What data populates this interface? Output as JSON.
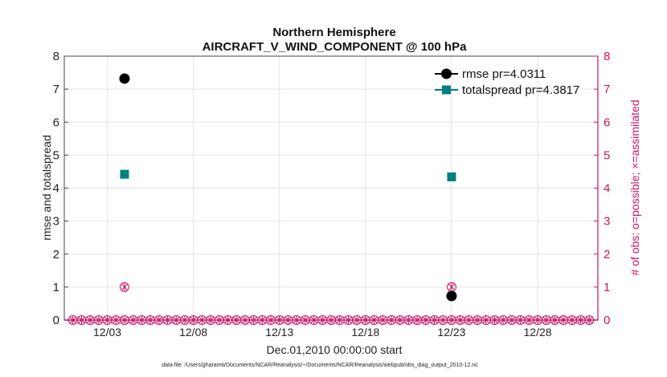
{
  "chart_data": {
    "type": "scatter",
    "title": "Northern Hemisphere",
    "subtitle": "AIRCRAFT_V_WIND_COMPONENT @ 100 hPa",
    "xlabel": "Dec.01,2010 00:00:00 start",
    "ylabel": "rmse and totalspread",
    "ylabel_right": "# of obs: o=possible; ×=assimilated",
    "ylim": [
      0,
      8
    ],
    "ylim_right": [
      0,
      8
    ],
    "xlim_days": [
      0.5,
      31.5
    ],
    "x_ticks": [
      {
        "day": 3,
        "label": "12/03"
      },
      {
        "day": 8,
        "label": "12/08"
      },
      {
        "day": 13,
        "label": "12/13"
      },
      {
        "day": 18,
        "label": "12/18"
      },
      {
        "day": 23,
        "label": "12/23"
      },
      {
        "day": 28,
        "label": "12/28"
      }
    ],
    "y_ticks": [
      0,
      1,
      2,
      3,
      4,
      5,
      6,
      7,
      8
    ],
    "y_ticks_right": [
      0,
      1,
      2,
      3,
      4,
      5,
      6,
      7,
      8
    ],
    "grid": true,
    "legend_position": "top-right",
    "series": [
      {
        "name": "rmse pr=4.0311",
        "color": "#000000",
        "marker": "circle",
        "points": [
          {
            "day": 4,
            "y": 7.32
          },
          {
            "day": 23,
            "y": 0.73
          }
        ]
      },
      {
        "name": "totalspread pr=4.3817",
        "color": "#008080",
        "marker": "square",
        "points": [
          {
            "day": 4,
            "y": 4.42
          },
          {
            "day": 23,
            "y": 4.34
          }
        ]
      }
    ],
    "obs_counts": {
      "color": "#cc1166",
      "days": [
        1,
        1.5,
        2,
        2.5,
        3,
        3.5,
        4,
        4.5,
        5,
        5.5,
        6,
        6.5,
        7,
        7.5,
        8,
        8.5,
        9,
        9.5,
        10,
        10.5,
        11,
        11.5,
        12,
        12.5,
        13,
        13.5,
        14,
        14.5,
        15,
        15.5,
        16,
        16.5,
        17,
        17.5,
        18,
        18.5,
        19,
        19.5,
        20,
        20.5,
        21,
        21.5,
        22,
        22.5,
        23,
        23.5,
        24,
        24.5,
        25,
        25.5,
        26,
        26.5,
        27,
        27.5,
        28,
        28.5,
        29,
        29.5,
        30,
        30.5,
        31
      ],
      "nonzero": [
        {
          "day": 4,
          "possible": 1,
          "assimilated": 1
        },
        {
          "day": 23,
          "possible": 1,
          "assimilated": 1
        }
      ]
    }
  },
  "footer": "data file: /Users/gharamti/Documents/NCAR/Reanalysis/~/Documents/NCAR/Reanalysis/webpub/obs_diag_output_2010-12.nc"
}
